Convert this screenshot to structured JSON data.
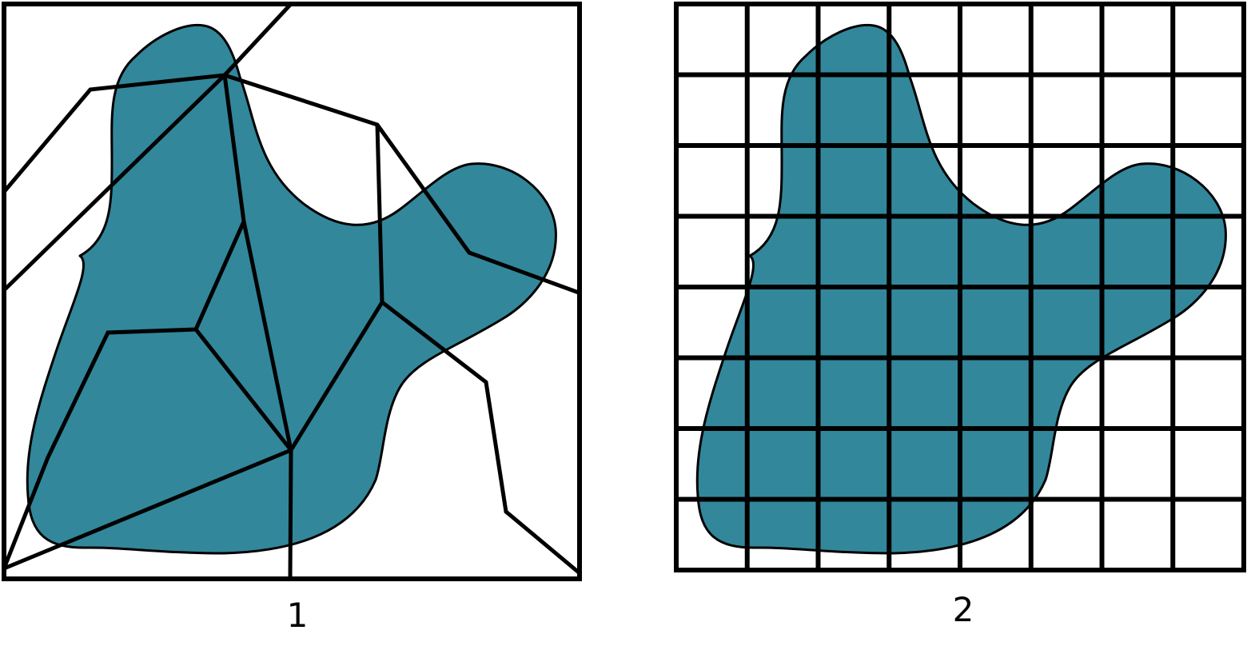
{
  "colors": {
    "blob_fill": "#32879B",
    "stroke": "#000000",
    "background": "#FFFFFF"
  },
  "panels": [
    {
      "label": "1",
      "partition": "irregular-polygons"
    },
    {
      "label": "2",
      "partition": "regular-grid",
      "grid_columns": 8,
      "grid_rows": 8
    }
  ]
}
